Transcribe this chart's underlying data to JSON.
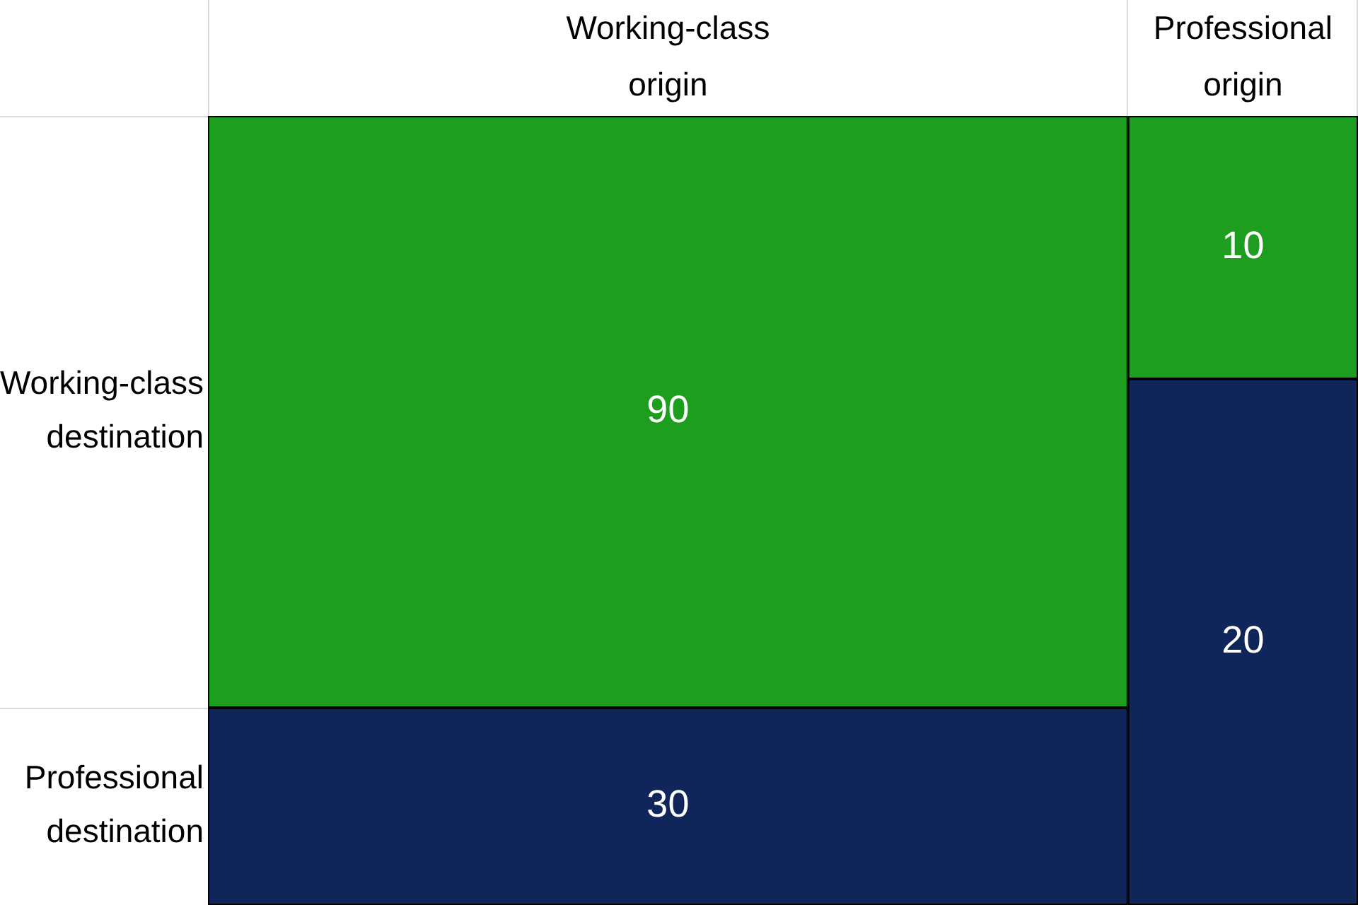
{
  "chart_data": {
    "type": "other",
    "categories": [
      "Working-class origin",
      "Professional origin"
    ],
    "series": [
      {
        "name": "Working-class destination",
        "color": "#1e9e1e",
        "values": [
          90,
          10
        ]
      },
      {
        "name": "Professional destination",
        "color": "#10265a",
        "values": [
          30,
          20
        ]
      }
    ],
    "data_labels": true
  }
}
